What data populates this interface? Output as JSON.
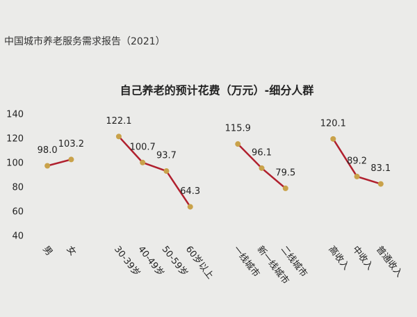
{
  "header": "中国城市养老服务需求报告（2021）",
  "chart_data": {
    "type": "line",
    "title": "自己养老的预计花费（万元）-细分人群",
    "categories": [
      "男",
      "女",
      null,
      "30-39岁",
      "40-49岁",
      "50-59岁",
      "60岁以上",
      null,
      "一线城市",
      "新一线城市",
      "二线城市",
      null,
      "高收入",
      "中收入",
      "普通收入"
    ],
    "values": [
      98,
      103.2,
      null,
      122.1,
      100.7,
      93.7,
      64.3,
      null,
      115.9,
      96.1,
      79.5,
      null,
      120.1,
      89.2,
      83.1
    ],
    "value_labels": [
      "98.0",
      "103.2",
      null,
      "122.1",
      "100.7",
      "93.7",
      "64.3",
      null,
      "115.9",
      "96.1",
      "79.5",
      null,
      "120.1",
      "89.2",
      "83.1"
    ],
    "color": "#b0202e",
    "marker_color": "#c9a24a",
    "ylim": [
      40,
      140
    ],
    "yticks": [
      40,
      60,
      80,
      100,
      120,
      140
    ],
    "grid": false
  }
}
